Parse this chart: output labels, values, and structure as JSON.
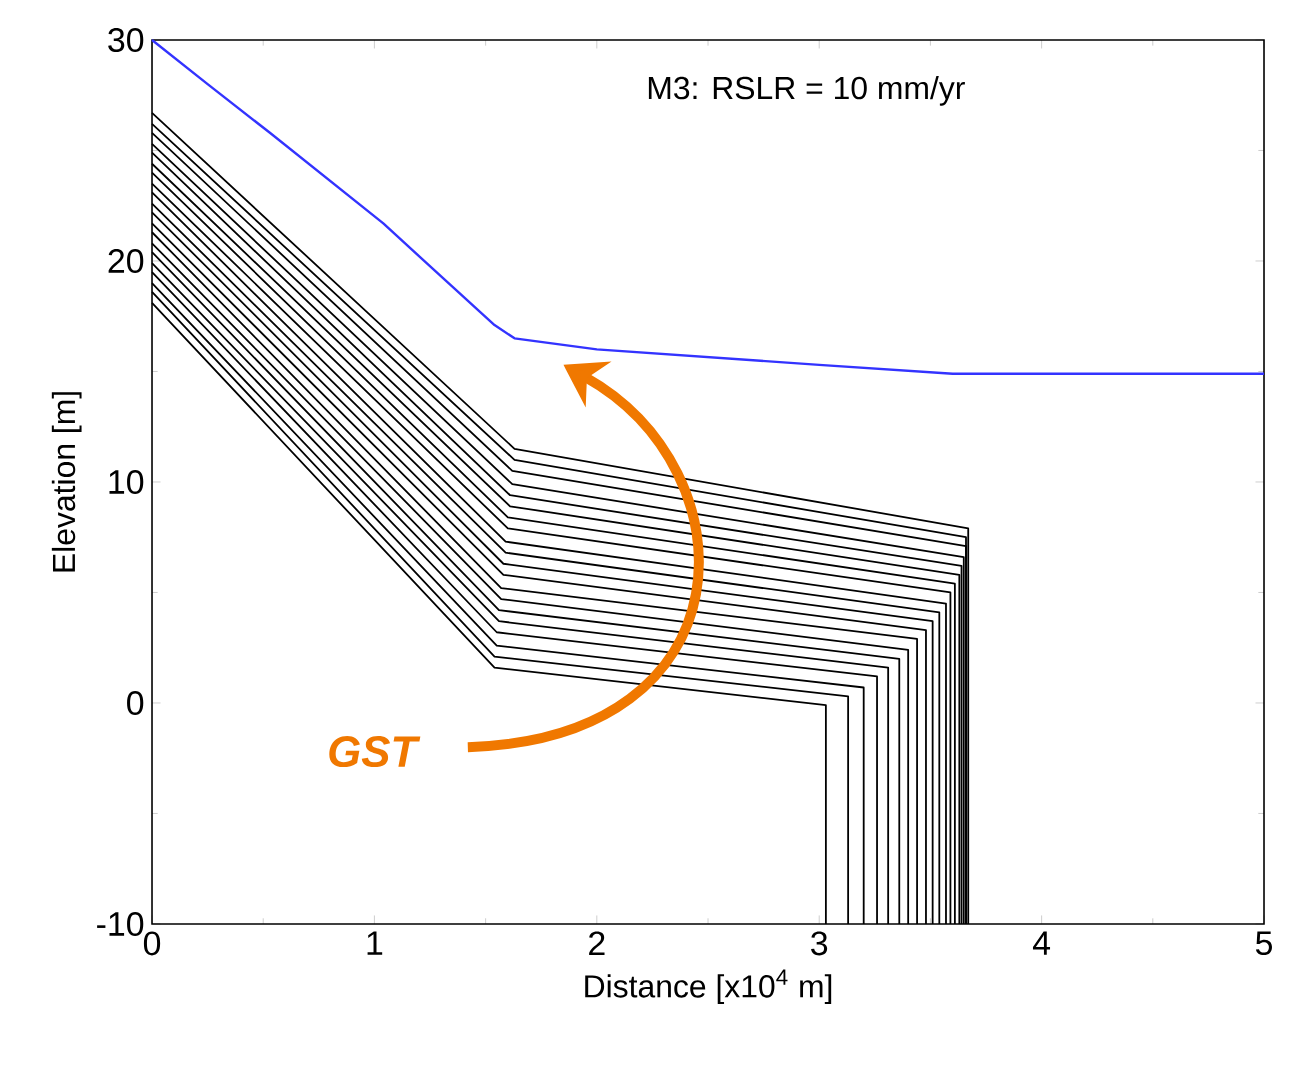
{
  "chart_data": {
    "type": "line",
    "xlabel": "Distance [x10$^{4}$ m]",
    "ylabel": "Elevation [m]",
    "annotations": [
      "M3: RSLR = 10 mm/yr",
      "GST"
    ],
    "xlim": [
      0,
      5
    ],
    "ylim": [
      -10,
      30
    ],
    "xticks": [
      0,
      1,
      2,
      3,
      4,
      5
    ],
    "yticks": [
      -10,
      0,
      10,
      20,
      30
    ],
    "grid": false,
    "marker": "none",
    "line_style": "solid",
    "series": [
      {
        "color": "#3333ff",
        "x": [
          0,
          0.25,
          0.53,
          1.04,
          1.3,
          1.54,
          1.63,
          2,
          3,
          3.6,
          5
        ],
        "values": [
          30,
          28,
          25.8,
          21.7,
          19.3,
          17.1,
          16.5,
          16.0,
          15.3,
          14.9,
          14.9
        ]
      },
      {
        "color": "#000000",
        "x": [
          0,
          1.54,
          3.03,
          3.03
        ],
        "values": [
          18.1,
          1.6,
          -0.1,
          -10
        ]
      },
      {
        "color": "#000000",
        "x": [
          0,
          1.54,
          3.13,
          3.13
        ],
        "values": [
          18.6,
          2.1,
          0.3,
          -10
        ]
      },
      {
        "color": "#000000",
        "x": [
          0,
          1.55,
          3.2,
          3.2
        ],
        "values": [
          19.0,
          2.6,
          0.7,
          -10
        ]
      },
      {
        "color": "#000000",
        "x": [
          0,
          1.55,
          3.26,
          3.26
        ],
        "values": [
          19.5,
          3.2,
          1.2,
          -10
        ]
      },
      {
        "color": "#000000",
        "x": [
          0,
          1.56,
          3.31,
          3.31
        ],
        "values": [
          19.9,
          3.7,
          1.6,
          -10
        ]
      },
      {
        "color": "#000000",
        "x": [
          0,
          1.56,
          3.36,
          3.36
        ],
        "values": [
          20.4,
          4.2,
          2.0,
          -10
        ]
      },
      {
        "color": "#000000",
        "x": [
          0,
          1.57,
          3.4,
          3.4
        ],
        "values": [
          20.8,
          4.7,
          2.4,
          -10
        ]
      },
      {
        "color": "#000000",
        "x": [
          0,
          1.57,
          3.44,
          3.44
        ],
        "values": [
          21.3,
          5.2,
          2.9,
          -10
        ]
      },
      {
        "color": "#000000",
        "x": [
          0,
          1.58,
          3.48,
          3.48
        ],
        "values": [
          21.7,
          5.8,
          3.3,
          -10
        ]
      },
      {
        "color": "#000000",
        "x": [
          0,
          1.58,
          3.51,
          3.51
        ],
        "values": [
          22.2,
          6.3,
          3.7,
          -10
        ]
      },
      {
        "color": "#000000",
        "x": [
          0,
          1.59,
          3.54,
          3.54
        ],
        "values": [
          22.6,
          6.8,
          4.1,
          -10
        ]
      },
      {
        "color": "#000000",
        "x": [
          0,
          1.59,
          3.57,
          3.57
        ],
        "values": [
          23.1,
          7.3,
          4.5,
          -10
        ]
      },
      {
        "color": "#000000",
        "x": [
          0,
          1.6,
          3.59,
          3.59
        ],
        "values": [
          23.5,
          7.9,
          5.0,
          -10
        ]
      },
      {
        "color": "#000000",
        "x": [
          0,
          1.6,
          3.61,
          3.61
        ],
        "values": [
          24.0,
          8.4,
          5.4,
          -10
        ]
      },
      {
        "color": "#000000",
        "x": [
          0,
          1.61,
          3.63,
          3.63
        ],
        "values": [
          24.4,
          8.9,
          5.8,
          -10
        ]
      },
      {
        "color": "#000000",
        "x": [
          0,
          1.61,
          3.64,
          3.64
        ],
        "values": [
          24.9,
          9.4,
          6.2,
          -10
        ]
      },
      {
        "color": "#000000",
        "x": [
          0,
          1.62,
          3.65,
          3.65
        ],
        "values": [
          25.3,
          9.9,
          6.6,
          -10
        ]
      },
      {
        "color": "#000000",
        "x": [
          0,
          1.62,
          3.66,
          3.66
        ],
        "values": [
          25.8,
          10.5,
          7.1,
          -10
        ]
      },
      {
        "color": "#000000",
        "x": [
          0,
          1.63,
          3.66,
          3.66
        ],
        "values": [
          26.2,
          11.0,
          7.5,
          -10
        ]
      },
      {
        "color": "#000000",
        "x": [
          0,
          1.63,
          3.67,
          3.67
        ],
        "values": [
          26.7,
          11.5,
          7.9,
          -10
        ]
      }
    ]
  }
}
